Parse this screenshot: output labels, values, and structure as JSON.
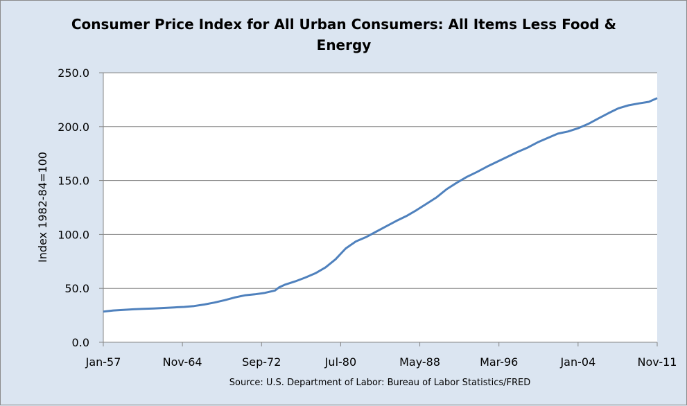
{
  "chart_data": {
    "type": "line",
    "title_lines": [
      "Consumer Price Index for All Urban Consumers: All Items Less Food &",
      "Energy"
    ],
    "ylabel": "Index 1982-84=100",
    "xlabel": "",
    "source": "Source: U.S. Department of Labor: Bureau of Labor Statistics/FRED",
    "ylim": [
      0,
      250
    ],
    "y_ticks": [
      "0.0",
      "50.0",
      "100.0",
      "150.0",
      "200.0",
      "250.0"
    ],
    "y_tick_values": [
      0,
      50,
      100,
      150,
      200,
      250
    ],
    "x_range": [
      "1957-01",
      "2011-11"
    ],
    "x_ticks": [
      {
        "label": "Jan-57",
        "date": "1957-01"
      },
      {
        "label": "Nov-64",
        "date": "1964-11"
      },
      {
        "label": "Sep-72",
        "date": "1972-09"
      },
      {
        "label": "Jul-80",
        "date": "1980-07"
      },
      {
        "label": "May-88",
        "date": "1988-05"
      },
      {
        "label": "Mar-96",
        "date": "1996-03"
      },
      {
        "label": "Jan-04",
        "date": "2004-01"
      },
      {
        "label": "Nov-11",
        "date": "2011-11"
      }
    ],
    "grid": true,
    "legend": "none",
    "series": [
      {
        "color": "#4f81bd",
        "points": [
          [
            "1957-01",
            28.5
          ],
          [
            "1958-01",
            29.5
          ],
          [
            "1959-01",
            30.0
          ],
          [
            "1960-01",
            30.6
          ],
          [
            "1961-01",
            31.0
          ],
          [
            "1962-01",
            31.3
          ],
          [
            "1963-01",
            31.8
          ],
          [
            "1964-01",
            32.3
          ],
          [
            "1965-01",
            32.8
          ],
          [
            "1966-01",
            33.6
          ],
          [
            "1967-01",
            35.0
          ],
          [
            "1968-01",
            36.8
          ],
          [
            "1969-01",
            39.0
          ],
          [
            "1970-01",
            41.5
          ],
          [
            "1971-01",
            43.5
          ],
          [
            "1972-01",
            44.5
          ],
          [
            "1973-01",
            45.8
          ],
          [
            "1974-01",
            48.0
          ],
          [
            "1974-06",
            51.0
          ],
          [
            "1975-01",
            53.5
          ],
          [
            "1976-01",
            56.5
          ],
          [
            "1977-01",
            60.0
          ],
          [
            "1978-01",
            64.0
          ],
          [
            "1979-01",
            69.5
          ],
          [
            "1980-01",
            77.0
          ],
          [
            "1980-07",
            82.0
          ],
          [
            "1981-01",
            87.0
          ],
          [
            "1982-01",
            93.5
          ],
          [
            "1983-01",
            97.5
          ],
          [
            "1984-01",
            102.5
          ],
          [
            "1985-01",
            107.5
          ],
          [
            "1986-01",
            112.5
          ],
          [
            "1987-01",
            117.0
          ],
          [
            "1988-01",
            122.5
          ],
          [
            "1989-01",
            128.5
          ],
          [
            "1990-01",
            134.5
          ],
          [
            "1991-01",
            142.0
          ],
          [
            "1992-01",
            148.0
          ],
          [
            "1993-01",
            153.5
          ],
          [
            "1994-01",
            158.0
          ],
          [
            "1995-01",
            163.0
          ],
          [
            "1996-01",
            167.5
          ],
          [
            "1997-01",
            172.0
          ],
          [
            "1998-01",
            176.5
          ],
          [
            "1999-01",
            180.5
          ],
          [
            "2000-01",
            185.5
          ],
          [
            "2001-01",
            189.5
          ],
          [
            "2002-01",
            193.5
          ],
          [
            "2003-01",
            195.5
          ],
          [
            "2004-01",
            198.5
          ],
          [
            "2005-01",
            202.5
          ],
          [
            "2006-01",
            207.5
          ],
          [
            "2007-01",
            212.5
          ],
          [
            "2008-01",
            217.0
          ],
          [
            "2009-01",
            219.8
          ],
          [
            "2010-01",
            221.5
          ],
          [
            "2011-01",
            223.0
          ],
          [
            "2011-11",
            226.5
          ]
        ]
      }
    ]
  }
}
